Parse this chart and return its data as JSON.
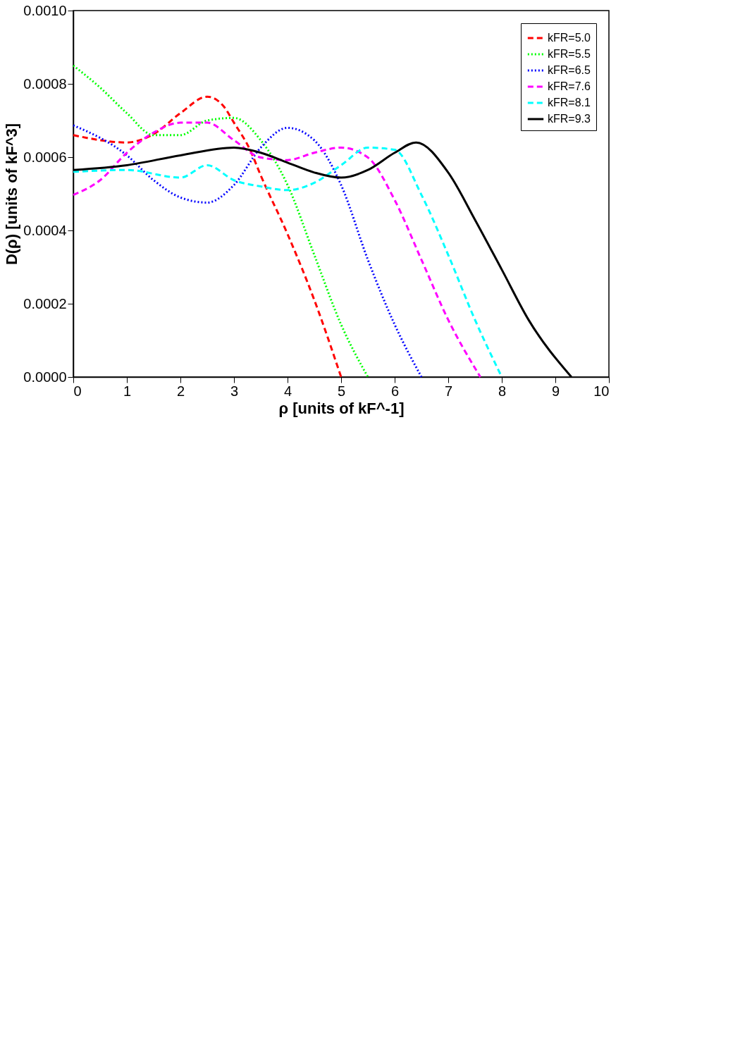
{
  "chart_data": {
    "type": "line",
    "xlabel": "ρ [units of kF^-1]",
    "ylabel": "D(ρ) [units of kF^3]",
    "xlim": [
      0,
      10
    ],
    "xticks": [
      0,
      1,
      2,
      3,
      4,
      5,
      6,
      7,
      8,
      9,
      10
    ],
    "ylim": [
      0,
      0.001
    ],
    "yticks": [
      {
        "value": 0,
        "label": "0.0000"
      },
      {
        "value": 0.0002,
        "label": "0.0002"
      },
      {
        "value": 0.0004,
        "label": "0.0004"
      },
      {
        "value": 0.0006,
        "label": "0.0006"
      },
      {
        "value": 0.0008,
        "label": "0.0008"
      },
      {
        "value": 0.001,
        "label": "0.0010"
      }
    ],
    "grid": false,
    "legend": "top right",
    "marker": "none",
    "series": [
      {
        "name": "kFR=5.0",
        "color": "#ff0000",
        "line_style": "dashed",
        "x": [
          0,
          1,
          1.5,
          2,
          2.5,
          2.8,
          3,
          3.3,
          3.5,
          4,
          4.5,
          5
        ],
        "values": [
          0.00066,
          0.00064,
          0.000663,
          0.00072,
          0.000765,
          0.00074,
          0.000694,
          0.00062,
          0.00055,
          0.00039,
          0.00021,
          0
        ]
      },
      {
        "name": "kFR=5.5",
        "color": "#00ff00",
        "line_style": "dotted",
        "x": [
          0,
          0.5,
          1,
          1.5,
          2,
          2.5,
          3,
          3.5,
          4,
          4.5,
          5,
          5.5
        ],
        "values": [
          0.00085,
          0.00079,
          0.00072,
          0.00066,
          0.00066,
          0.0007,
          0.000707,
          0.000646,
          0.000524,
          0.000333,
          0.000143,
          0
        ]
      },
      {
        "name": "kFR=6.5",
        "color": "#0000ff",
        "line_style": "dotted",
        "x": [
          0,
          1,
          1.5,
          2,
          2.5,
          3,
          3.5,
          4,
          4.5,
          5,
          5.5,
          6,
          6.5
        ],
        "values": [
          0.000687,
          0.000605,
          0.000537,
          0.00049,
          0.000476,
          0.000524,
          0.000626,
          0.00068,
          0.000646,
          0.000524,
          0.00032,
          0.000143,
          0
        ]
      },
      {
        "name": "kFR=7.6",
        "color": "#ff00ff",
        "line_style": "dashed",
        "x": [
          0,
          0.5,
          1,
          1.5,
          2,
          2.5,
          3,
          3.5,
          4,
          4.5,
          5,
          5.5,
          6,
          6.5,
          7,
          7.6
        ],
        "values": [
          0.000497,
          0.000537,
          0.000612,
          0.000667,
          0.000694,
          0.000694,
          0.000646,
          0.000599,
          0.000592,
          0.000612,
          0.000626,
          0.000599,
          0.000483,
          0.00032,
          0.000156,
          0
        ]
      },
      {
        "name": "kFR=8.1",
        "color": "#00ffff",
        "line_style": "dashed",
        "x": [
          0,
          1,
          2,
          2.5,
          3,
          3.5,
          4,
          4.5,
          5,
          5.5,
          6,
          6.5,
          7,
          7.5,
          8
        ],
        "values": [
          0.00056,
          0.000565,
          0.000544,
          0.000578,
          0.000537,
          0.00052,
          0.00051,
          0.00053,
          0.000578,
          0.000626,
          0.00062,
          0.000497,
          0.000333,
          0.000156,
          0
        ]
      },
      {
        "name": "kFR=9.3",
        "color": "#000000",
        "line_style": "solid",
        "x": [
          0,
          1,
          2,
          3,
          3.5,
          4,
          4.5,
          5,
          5.5,
          6,
          6.4,
          7,
          7.5,
          8,
          8.5,
          9.3
        ],
        "values": [
          0.000565,
          0.000578,
          0.000605,
          0.000626,
          0.000612,
          0.000585,
          0.000558,
          0.000544,
          0.000565,
          0.000612,
          0.00064,
          0.000558,
          0.000429,
          0.000293,
          0.000156,
          0
        ]
      }
    ]
  }
}
